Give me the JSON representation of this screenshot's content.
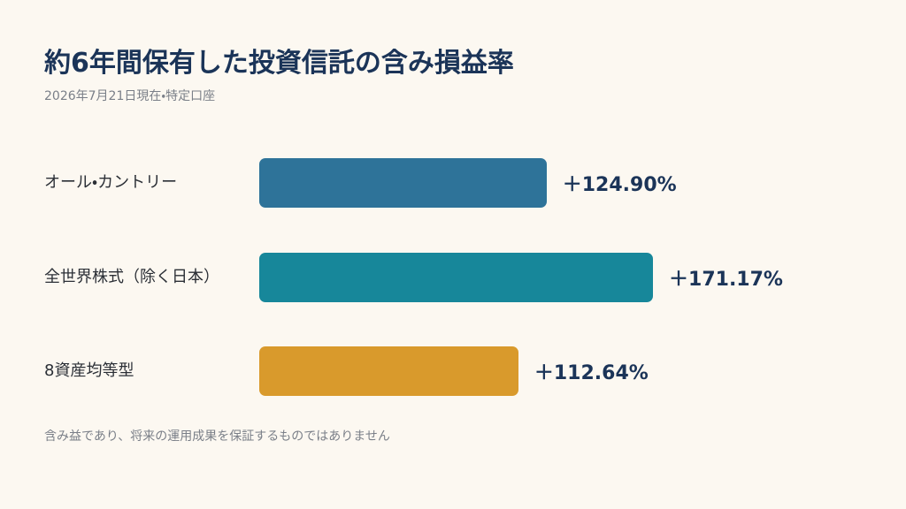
{
  "chart_data": {
    "type": "bar",
    "orientation": "horizontal",
    "title": "約6年間保有した投資信託の含み損益率",
    "subtitle": "2026年7月21日現在・特定口座",
    "categories": [
      "オール・カントリー",
      "全世界株式（除く日本）",
      "8資産均等型"
    ],
    "values": [
      124.9,
      171.17,
      112.64
    ],
    "value_labels": [
      "＋124.90%",
      "＋171.17%",
      "＋112.64%"
    ],
    "colors": [
      "#2e7399",
      "#17879a",
      "#d99a2c"
    ],
    "note": "含み益であり、将来の運用成果を保証するものではありません"
  }
}
